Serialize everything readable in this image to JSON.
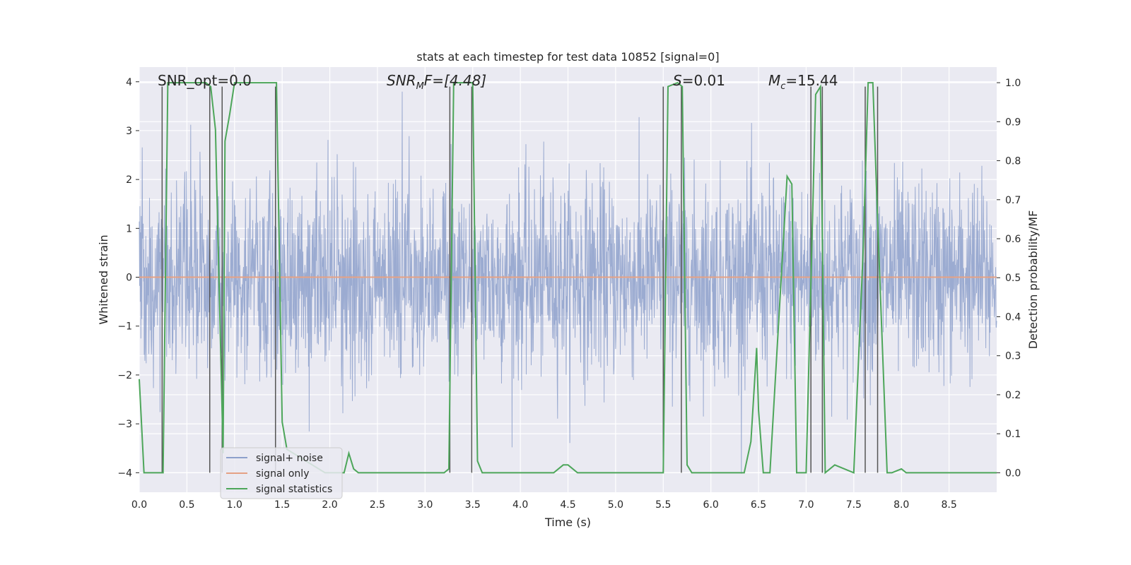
{
  "chart_data": {
    "type": "line",
    "title": "stats at each timestep for test data 10852 [signal=0]",
    "xlabel": "Time (s)",
    "ylabel": "Whitened strain",
    "ylabel_right": "Detection probability/MF",
    "xlim": [
      0.0,
      9.0
    ],
    "ylim": [
      -4.4,
      4.3
    ],
    "ylim_right": [
      -0.05,
      1.04
    ],
    "x_ticks": [
      "0.0",
      "0.5",
      "1.0",
      "1.5",
      "2.0",
      "2.5",
      "3.0",
      "3.5",
      "4.0",
      "4.5",
      "5.0",
      "5.5",
      "6.0",
      "6.5",
      "7.0",
      "7.5",
      "8.0",
      "8.5"
    ],
    "y_ticks": [
      "4",
      "3",
      "2",
      "1",
      "0",
      "−1",
      "−2",
      "−3",
      "−4"
    ],
    "y_ticks_right": [
      "1.0",
      "0.9",
      "0.8",
      "0.7",
      "0.6",
      "0.5",
      "0.4",
      "0.3",
      "0.2",
      "0.1",
      "0.0"
    ],
    "annotations": {
      "snr_opt": "SNR_opt=0.0",
      "snr_mf_base": "SNR",
      "snr_mf_sub": "M",
      "snr_mf_rest": "F=[4.48]",
      "s_base": "S",
      "s_rest": "=0.01",
      "mc_base": "M",
      "mc_sub": "c",
      "mc_rest": "=15.44"
    },
    "legend": {
      "location": "lower-left",
      "entries": [
        "signal+ noise",
        "signal only",
        "signal statistics"
      ]
    },
    "series": [
      {
        "name": "signal+ noise",
        "color": "#8da0cb",
        "note": "whitened strain noise, roughly Gaussian with sigma ~1, spikes up to ~4",
        "sigma": 1.0,
        "peak": 4.1
      },
      {
        "name": "signal only",
        "color": "#e5a184",
        "x": [
          0.0,
          9.0
        ],
        "y": [
          0.0,
          0.0
        ]
      },
      {
        "name": "signal statistics",
        "color": "#4da65a",
        "axis": "right",
        "x": [
          0.0,
          0.05,
          0.25,
          0.3,
          0.7,
          0.75,
          0.8,
          0.88,
          0.9,
          0.95,
          1.0,
          1.44,
          1.5,
          1.55,
          1.95,
          2.15,
          2.2,
          2.25,
          2.3,
          3.2,
          3.25,
          3.3,
          3.5,
          3.55,
          3.6,
          3.65,
          4.35,
          4.45,
          4.5,
          4.6,
          5.5,
          5.55,
          5.65,
          5.7,
          5.75,
          5.8,
          6.35,
          6.42,
          6.48,
          6.5,
          6.55,
          6.62,
          6.8,
          6.85,
          6.9,
          6.95,
          7.0,
          7.1,
          7.15,
          7.2,
          7.3,
          7.5,
          7.6,
          7.65,
          7.7,
          7.75,
          7.85,
          7.9,
          8.0,
          8.05,
          8.1,
          8.15,
          9.0
        ],
        "y": [
          0.24,
          0.0,
          0.0,
          1.0,
          1.0,
          0.99,
          0.88,
          0.05,
          0.85,
          0.92,
          1.0,
          1.0,
          0.13,
          0.06,
          0.0,
          0.0,
          0.05,
          0.01,
          0.0,
          0.0,
          0.01,
          1.0,
          1.0,
          0.03,
          0.0,
          0.0,
          0.0,
          0.02,
          0.02,
          0.0,
          0.0,
          0.99,
          1.0,
          0.99,
          0.02,
          0.0,
          0.0,
          0.08,
          0.32,
          0.16,
          0.0,
          0.0,
          0.76,
          0.74,
          0.0,
          0.0,
          0.0,
          0.97,
          0.99,
          0.0,
          0.02,
          0.0,
          0.58,
          1.0,
          1.0,
          0.65,
          0.0,
          0.0,
          0.01,
          0.0,
          0.0,
          0.0,
          0.0
        ]
      },
      {
        "name": "event markers",
        "color": "#555555",
        "x": [
          0.24,
          0.74,
          0.87,
          1.43,
          3.26,
          3.49,
          5.5,
          5.69,
          7.05,
          7.17,
          7.62,
          7.75
        ]
      }
    ]
  }
}
